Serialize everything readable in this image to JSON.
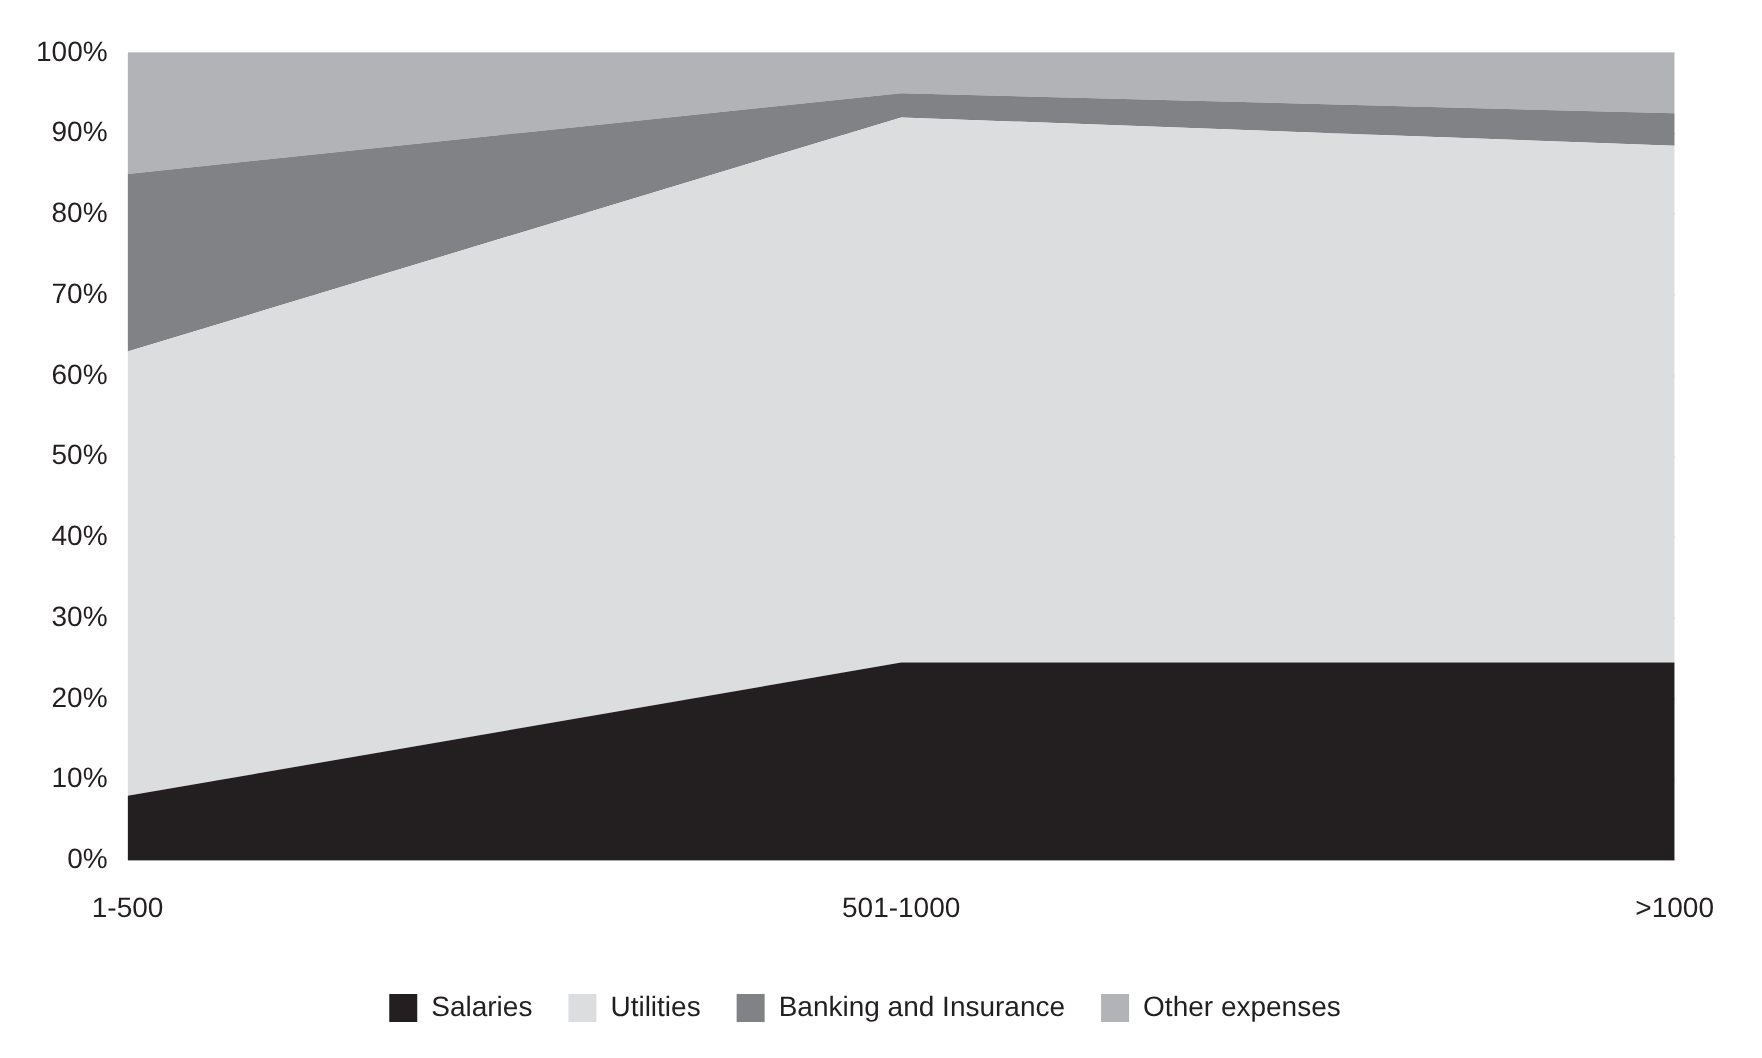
{
  "chart_data": {
    "type": "area",
    "stacked": true,
    "categories": [
      "1-500",
      "501-1000",
      ">1000"
    ],
    "series": [
      {
        "name": "Salaries",
        "color": "#231f20",
        "values": [
          8,
          24.5,
          24.5
        ]
      },
      {
        "name": "Utilities",
        "color": "#dcdddf",
        "values": [
          55,
          67.5,
          64
        ]
      },
      {
        "name": "Banking and Insurance",
        "color": "#808285",
        "values": [
          22,
          3,
          4
        ]
      },
      {
        "name": "Other expenses",
        "color": "#b1b3b6",
        "values": [
          15,
          5,
          7.5
        ]
      }
    ],
    "ylim": [
      0,
      100
    ],
    "yticks": [
      {
        "value": 0,
        "label": "0%"
      },
      {
        "value": 10,
        "label": "10%"
      },
      {
        "value": 20,
        "label": "20%"
      },
      {
        "value": 30,
        "label": "30%"
      },
      {
        "value": 40,
        "label": "40%"
      },
      {
        "value": 50,
        "label": "50%"
      },
      {
        "value": 60,
        "label": "60%"
      },
      {
        "value": 70,
        "label": "70%"
      },
      {
        "value": 80,
        "label": "80%"
      },
      {
        "value": 90,
        "label": "90%"
      },
      {
        "value": 100,
        "label": "100%"
      }
    ],
    "grid": "y",
    "legend": "bottom"
  }
}
